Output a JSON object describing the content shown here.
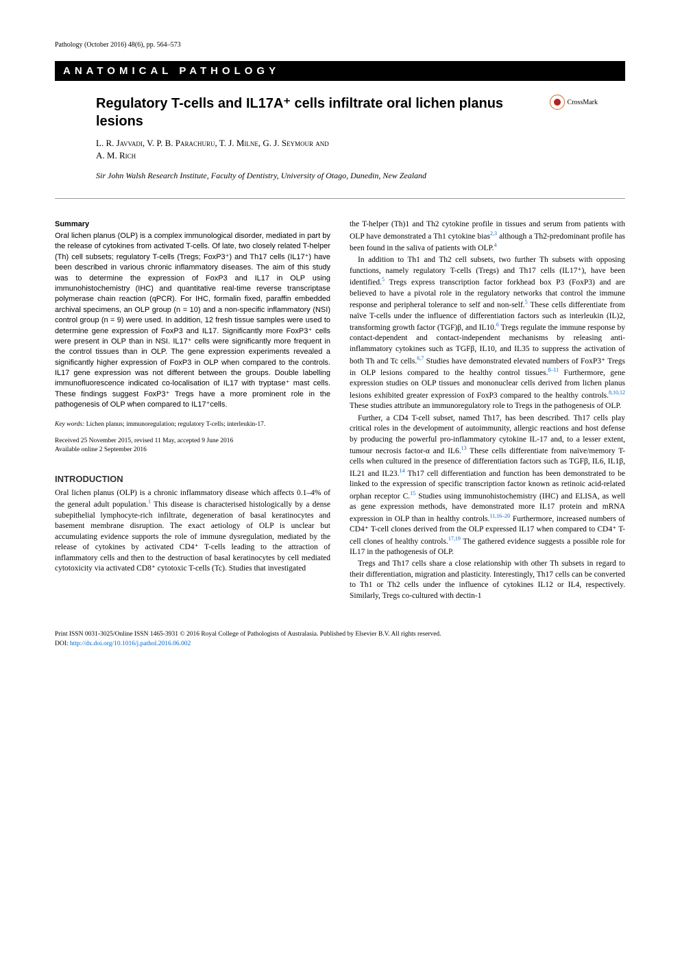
{
  "running_head": "Pathology (October 2016) 48(6), pp. 564–573",
  "section_banner": "ANATOMICAL PATHOLOGY",
  "title": "Regulatory T-cells and IL17A⁺ cells infiltrate oral lichen planus lesions",
  "crossmark_label": "CrossMark",
  "authors_line1": "L. R. Javvadi, V. P. B. Parachuru, T. J. Milne, G. J. Seymour and",
  "authors_line2": "A. M. Rich",
  "affiliation": "Sir John Walsh Research Institute, Faculty of Dentistry, University of Otago, Dunedin, New Zealand",
  "summary_heading": "Summary",
  "summary_body": "Oral lichen planus (OLP) is a complex immunological disorder, mediated in part by the release of cytokines from activated T-cells. Of late, two closely related T-helper (Th) cell subsets; regulatory T-cells (Tregs; FoxP3⁺) and Th17 cells (IL17⁺) have been described in various chronic inflammatory diseases. The aim of this study was to determine the expression of FoxP3 and IL17 in OLP using immunohistochemistry (IHC) and quantitative real-time reverse transcriptase polymerase chain reaction (qPCR). For IHC, formalin fixed, paraffin embedded archival specimens, an OLP group (n = 10) and a non-specific inflammatory (NSI) control group (n = 9) were used. In addition, 12 fresh tissue samples were used to determine gene expression of FoxP3 and IL17. Significantly more FoxP3⁺ cells were present in OLP than in NSI. IL17⁺ cells were significantly more frequent in the control tissues than in OLP. The gene expression experiments revealed a significantly higher expression of FoxP3 in OLP when compared to the controls. IL17 gene expression was not different between the groups. Double labelling immunofluorescence indicated co-localisation of IL17 with tryptase⁺ mast cells. These findings suggest FoxP3⁺ Tregs have a more prominent role in the pathogenesis of OLP when compared to IL17⁺cells.",
  "keywords_label": "Key words:",
  "keywords_text": " Lichen planus; immunoregulation; regulatory T-cells; interleukin-17.",
  "received_line1": "Received 25 November 2015, revised 11 May, accepted 9 June 2016",
  "received_line2": "Available online 2 September 2016",
  "intro_heading": "INTRODUCTION",
  "intro_p1_a": "Oral lichen planus (OLP) is a chronic inflammatory disease which affects 0.1–4% of the general adult population.",
  "intro_p1_ref1": "1",
  "intro_p1_b": " This disease is characterised histologically by a dense subepithelial lymphocyte-rich infiltrate, degeneration of basal keratinocytes and basement membrane disruption. The exact aetiology of OLP is unclear but accumulating evidence supports the role of immune dysregulation, mediated by the release of cytokines by activated CD4⁺ T-cells leading to the attraction of inflammatory cells and then to the destruction of basal keratinocytes by cell mediated cytotoxicity via activated CD8⁺ cytotoxic T-cells (Tc). Studies that investigated",
  "col2_p1_a": "the T-helper (Th)1 and Th2 cytokine profile in tissues and serum from patients with OLP have demonstrated a Th1 cytokine bias",
  "col2_p1_ref1": "2,3",
  "col2_p1_b": " although a Th2-predominant profile has been found in the saliva of patients with OLP.",
  "col2_p1_ref2": "4",
  "col2_p2_a": "In addition to Th1 and Th2 cell subsets, two further Th subsets with opposing functions, namely regulatory T-cells (Tregs) and Th17 cells (IL17⁺), have been identified.",
  "col2_p2_ref1": "5",
  "col2_p2_b": " Tregs express transcription factor forkhead box P3 (FoxP3) and are believed to have a pivotal role in the regulatory networks that control the immune response and peripheral tolerance to self and non-self.",
  "col2_p2_ref2": "5",
  "col2_p2_c": " These cells differentiate from naïve T-cells under the influence of differentiation factors such as interleukin (IL)2, transforming growth factor (TGF)β, and IL10.",
  "col2_p2_ref3": "6",
  "col2_p2_d": " Tregs regulate the immune response by contact-dependent and contact-independent mechanisms by releasing anti-inflammatory cytokines such as TGFβ, IL10, and IL35 to suppress the activation of both Th and Tc cells.",
  "col2_p2_ref4": "6,7",
  "col2_p2_e": " Studies have demonstrated elevated numbers of FoxP3⁺ Tregs in OLP lesions compared to the healthy control tissues.",
  "col2_p2_ref5": "8–11",
  "col2_p2_f": " Furthermore, gene expression studies on OLP tissues and mononuclear cells derived from lichen planus lesions exhibited greater expression of FoxP3 compared to the healthy controls.",
  "col2_p2_ref6": "8,10,12",
  "col2_p2_g": " These studies attribute an immunoregulatory role to Tregs in the pathogenesis of OLP.",
  "col2_p3_a": "Further, a CD4 T-cell subset, named Th17, has been described. Th17 cells play critical roles in the development of autoimmunity, allergic reactions and host defense by producing the powerful pro-inflammatory cytokine IL-17 and, to a lesser extent, tumour necrosis factor-α and IL6.",
  "col2_p3_ref1": "13",
  "col2_p3_b": " These cells differentiate from naïve/memory T-cells when cultured in the presence of differentiation factors such as TGFβ, IL6, IL1β, IL21 and IL23.",
  "col2_p3_ref2": "14",
  "col2_p3_c": " Th17 cell differentiation and function has been demonstrated to be linked to the expression of specific transcription factor known as retinoic acid-related orphan receptor C.",
  "col2_p3_ref3": "15",
  "col2_p3_d": " Studies using immunohistochemistry (IHC) and ELISA, as well as gene expression methods, have demonstrated more IL17 protein and mRNA expression in OLP than in healthy controls.",
  "col2_p3_ref4": "11,16–20",
  "col2_p3_e": " Furthermore, increased numbers of CD4⁺ T-cell clones derived from the OLP expressed IL17 when compared to CD4⁺ T-cell clones of healthy controls.",
  "col2_p3_ref5": "17,19",
  "col2_p3_f": " The gathered evidence suggests a possible role for IL17 in the pathogenesis of OLP.",
  "col2_p4": "Tregs and Th17 cells share a close relationship with other Th subsets in regard to their differentiation, migration and plasticity. Interestingly, Th17 cells can be converted to Th1 or Th2 cells under the influence of cytokines IL12 or IL4, respectively. Similarly, Tregs co-cultured with dectin-1",
  "footer_issn": "Print ISSN 0031-3025/Online ISSN 1465-3931  © 2016 Royal College of Pathologists of Australasia. Published by Elsevier B.V. All rights reserved.",
  "footer_doi_label": "DOI: ",
  "footer_doi_url": "http://dx.doi.org/10.1016/j.pathol.2016.06.002"
}
